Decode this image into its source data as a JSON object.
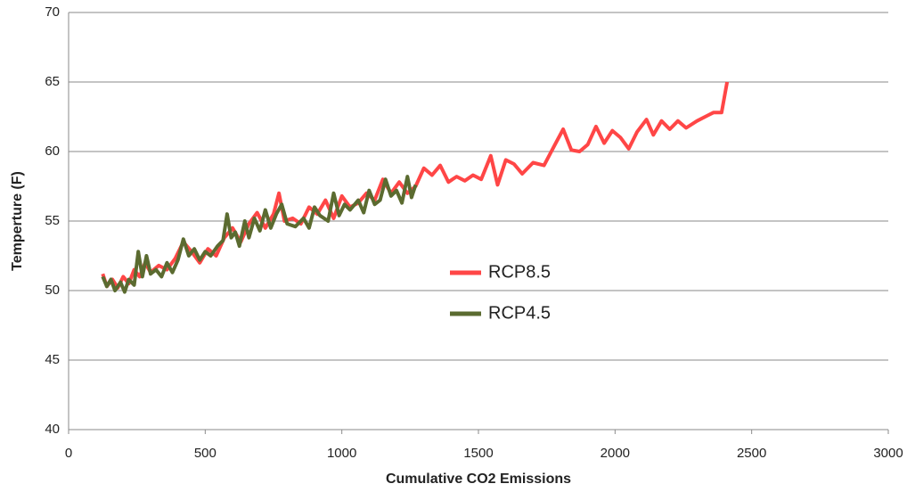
{
  "chart_data": {
    "type": "line",
    "xlabel": "Cumulative CO2 Emissions",
    "ylabel": "Temperture (F)",
    "xlim": [
      0,
      3000
    ],
    "xticks": [
      0,
      500,
      1000,
      1500,
      2000,
      2500,
      3000
    ],
    "ylim": [
      40,
      70
    ],
    "yticks": [
      40,
      45,
      50,
      55,
      60,
      65,
      70
    ],
    "grid": true,
    "series": [
      {
        "name": "RCP8.5",
        "color": "#ff4646",
        "x": [
          125,
          140,
          160,
          180,
          200,
          220,
          240,
          260,
          280,
          300,
          330,
          360,
          390,
          420,
          450,
          480,
          510,
          540,
          570,
          600,
          630,
          660,
          690,
          720,
          750,
          770,
          790,
          820,
          850,
          880,
          910,
          940,
          970,
          1000,
          1030,
          1060,
          1090,
          1120,
          1150,
          1180,
          1210,
          1240,
          1270,
          1300,
          1330,
          1360,
          1390,
          1420,
          1450,
          1480,
          1510,
          1545,
          1570,
          1600,
          1630,
          1660,
          1700,
          1740,
          1780,
          1810,
          1840,
          1870,
          1900,
          1930,
          1960,
          1990,
          2020,
          2050,
          2080,
          2115,
          2140,
          2170,
          2200,
          2230,
          2260,
          2300,
          2340,
          2360,
          2390,
          2410
        ],
        "values": [
          51.2,
          50.3,
          50.8,
          50.2,
          51.0,
          50.5,
          51.5,
          51.0,
          52.0,
          51.3,
          51.8,
          51.5,
          52.3,
          53.5,
          52.8,
          52.0,
          53.0,
          52.5,
          53.8,
          54.5,
          53.5,
          54.8,
          55.6,
          54.5,
          55.5,
          57.0,
          55.0,
          55.2,
          54.8,
          56.0,
          55.5,
          56.5,
          55.2,
          56.8,
          56.0,
          56.3,
          57.0,
          56.5,
          58.0,
          57.0,
          57.8,
          57.0,
          57.5,
          58.8,
          58.3,
          59.0,
          57.8,
          58.2,
          57.9,
          58.3,
          58.0,
          59.7,
          57.6,
          59.4,
          59.1,
          58.4,
          59.2,
          59.0,
          60.5,
          61.6,
          60.1,
          60.0,
          60.5,
          61.8,
          60.6,
          61.5,
          61.0,
          60.2,
          61.4,
          62.3,
          61.2,
          62.2,
          61.6,
          62.2,
          61.7,
          62.2,
          62.6,
          62.8,
          62.8,
          65.0
        ]
      },
      {
        "name": "RCP4.5",
        "color": "#5b6b30",
        "x": [
          125,
          140,
          155,
          170,
          190,
          205,
          220,
          240,
          255,
          270,
          285,
          300,
          320,
          340,
          360,
          380,
          400,
          420,
          440,
          460,
          480,
          500,
          520,
          545,
          565,
          580,
          595,
          610,
          625,
          645,
          660,
          680,
          700,
          720,
          740,
          760,
          780,
          800,
          830,
          860,
          880,
          900,
          920,
          950,
          970,
          990,
          1010,
          1030,
          1060,
          1080,
          1100,
          1120,
          1140,
          1160,
          1180,
          1200,
          1220,
          1240,
          1255,
          1270
        ],
        "values": [
          51.0,
          50.3,
          50.8,
          50.0,
          50.6,
          49.9,
          50.8,
          50.4,
          52.8,
          51.0,
          52.5,
          51.2,
          51.5,
          51.0,
          52.0,
          51.3,
          52.2,
          53.7,
          52.5,
          53.0,
          52.2,
          52.8,
          52.5,
          53.2,
          53.6,
          55.5,
          53.8,
          54.2,
          53.2,
          55.0,
          53.8,
          55.2,
          54.3,
          55.8,
          54.5,
          55.5,
          56.2,
          54.8,
          54.6,
          55.2,
          54.5,
          56.0,
          55.4,
          55.0,
          57.0,
          55.4,
          56.2,
          55.8,
          56.5,
          55.6,
          57.2,
          56.2,
          56.5,
          58.0,
          56.8,
          57.2,
          56.3,
          58.2,
          56.7,
          57.6
        ]
      }
    ]
  }
}
